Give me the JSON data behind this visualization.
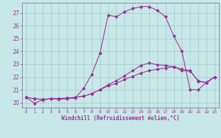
{
  "background_color": "#c8e8e8",
  "grid_color": "#aacccc",
  "line_color": "#993399",
  "xlabel": "Windchill (Refroidissement éolien,°C)",
  "xlim": [
    -0.5,
    23.5
  ],
  "ylim": [
    19.6,
    27.8
  ],
  "yticks": [
    20,
    21,
    22,
    23,
    24,
    25,
    26,
    27
  ],
  "xticks": [
    0,
    1,
    2,
    3,
    4,
    5,
    6,
    7,
    8,
    9,
    10,
    11,
    12,
    13,
    14,
    15,
    16,
    17,
    18,
    19,
    20,
    21,
    22,
    23
  ],
  "line1_x": [
    0,
    1,
    2,
    3,
    4,
    5,
    6,
    7,
    8,
    9,
    10,
    11,
    12,
    13,
    14,
    15,
    16,
    17,
    18,
    19,
    20,
    21,
    22,
    23
  ],
  "line1_y": [
    20.4,
    20.3,
    20.25,
    20.3,
    20.3,
    20.35,
    20.4,
    20.5,
    20.7,
    21.0,
    21.4,
    21.7,
    22.1,
    22.5,
    22.9,
    23.1,
    22.95,
    22.9,
    22.8,
    22.6,
    22.5,
    21.65,
    21.55,
    22.0
  ],
  "line2_x": [
    0,
    1,
    2,
    3,
    4,
    5,
    6,
    7,
    8,
    9,
    10,
    11,
    12,
    13,
    14,
    15,
    16,
    17,
    18,
    19,
    20,
    21,
    22,
    23
  ],
  "line2_y": [
    20.4,
    19.95,
    20.2,
    20.3,
    20.25,
    20.3,
    20.35,
    21.1,
    22.2,
    23.85,
    26.85,
    26.7,
    27.1,
    27.35,
    27.5,
    27.5,
    27.2,
    26.7,
    25.2,
    24.0,
    21.0,
    21.0,
    21.6,
    22.0
  ],
  "line3_x": [
    0,
    1,
    2,
    3,
    4,
    5,
    6,
    7,
    8,
    9,
    10,
    11,
    12,
    13,
    14,
    15,
    16,
    17,
    18,
    19,
    20,
    21,
    22,
    23
  ],
  "line3_y": [
    20.4,
    20.3,
    20.25,
    20.3,
    20.3,
    20.35,
    20.4,
    20.5,
    20.7,
    21.0,
    21.3,
    21.5,
    21.8,
    22.05,
    22.3,
    22.5,
    22.6,
    22.7,
    22.8,
    22.5,
    22.45,
    21.7,
    21.55,
    22.0
  ]
}
